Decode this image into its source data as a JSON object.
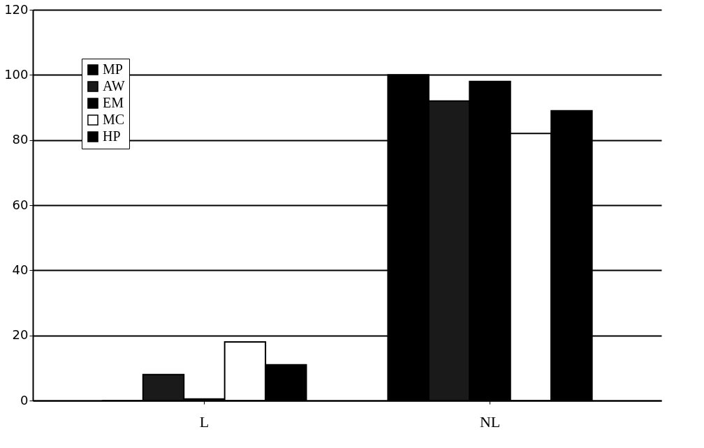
{
  "chart_data": {
    "type": "bar",
    "categories": [
      "L",
      "NL"
    ],
    "series": [
      {
        "name": "MP",
        "color": "#000000",
        "values": [
          0,
          100
        ]
      },
      {
        "name": "AW",
        "color": "#1a1a1a",
        "values": [
          8,
          92
        ]
      },
      {
        "name": "EM",
        "color": "#000000",
        "values": [
          0.5,
          98
        ]
      },
      {
        "name": "MC",
        "color": "#ffffff",
        "values": [
          18,
          82
        ]
      },
      {
        "name": "HP",
        "color": "#000000",
        "values": [
          11,
          89
        ]
      }
    ],
    "ylim": [
      0,
      120
    ],
    "yticks": [
      0,
      20,
      40,
      60,
      80,
      100,
      120
    ],
    "grid": "y",
    "legend": "top left"
  }
}
